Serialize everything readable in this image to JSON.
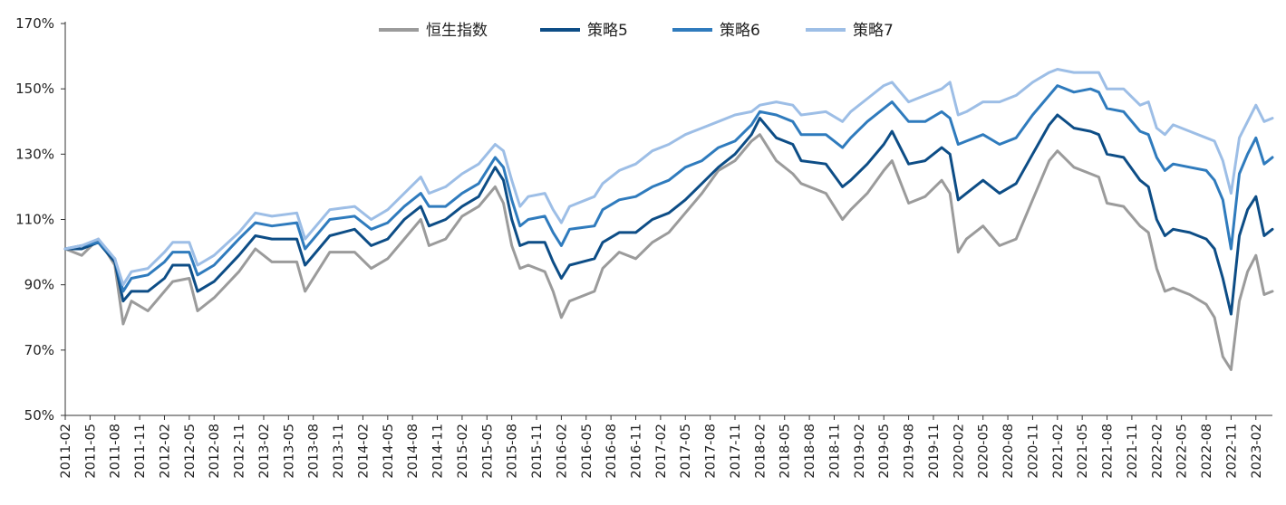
{
  "chart_data": {
    "type": "line",
    "title": "",
    "xlabel": "",
    "ylabel": "",
    "ylim": [
      50,
      170
    ],
    "y_ticks": [
      "50%",
      "70%",
      "90%",
      "110%",
      "130%",
      "150%",
      "170%"
    ],
    "y_tick_values": [
      50,
      70,
      90,
      110,
      130,
      150,
      170
    ],
    "x_tick_labels": [
      "2011-02",
      "2011-05",
      "2011-08",
      "2011-11",
      "2012-02",
      "2012-05",
      "2012-08",
      "2012-11",
      "2013-02",
      "2013-05",
      "2013-08",
      "2013-11",
      "2014-02",
      "2014-05",
      "2014-08",
      "2014-11",
      "2015-02",
      "2015-05",
      "2015-08",
      "2015-11",
      "2016-02",
      "2016-05",
      "2016-08",
      "2016-11",
      "2017-02",
      "2017-05",
      "2017-08",
      "2017-11",
      "2018-02",
      "2018-05",
      "2018-08",
      "2018-11",
      "2019-02",
      "2019-05",
      "2019-08",
      "2019-11",
      "2020-02",
      "2020-05",
      "2020-08",
      "2020-11",
      "2021-02",
      "2021-05",
      "2021-08",
      "2021-11",
      "2022-02",
      "2022-05",
      "2022-08",
      "2022-11",
      "2023-02"
    ],
    "x_range": [
      "2011-02",
      "2023-04"
    ],
    "legend_position": "top-center",
    "grid": false,
    "x": [
      "2011-02",
      "2011-04",
      "2011-06",
      "2011-08",
      "2011-09",
      "2011-10",
      "2011-12",
      "2012-02",
      "2012-03",
      "2012-05",
      "2012-06",
      "2012-08",
      "2012-11",
      "2013-01",
      "2013-03",
      "2013-06",
      "2013-07",
      "2013-10",
      "2014-01",
      "2014-03",
      "2014-05",
      "2014-07",
      "2014-09",
      "2014-10",
      "2014-12",
      "2015-02",
      "2015-04",
      "2015-06",
      "2015-07",
      "2015-08",
      "2015-09",
      "2015-10",
      "2015-12",
      "2016-01",
      "2016-02",
      "2016-03",
      "2016-06",
      "2016-07",
      "2016-09",
      "2016-11",
      "2017-01",
      "2017-03",
      "2017-05",
      "2017-07",
      "2017-09",
      "2017-11",
      "2018-01",
      "2018-02",
      "2018-04",
      "2018-06",
      "2018-07",
      "2018-10",
      "2018-12",
      "2019-01",
      "2019-03",
      "2019-05",
      "2019-06",
      "2019-08",
      "2019-10",
      "2019-12",
      "2020-01",
      "2020-02",
      "2020-03",
      "2020-05",
      "2020-07",
      "2020-09",
      "2020-11",
      "2021-01",
      "2021-02",
      "2021-04",
      "2021-06",
      "2021-07",
      "2021-08",
      "2021-10",
      "2021-12",
      "2022-01",
      "2022-02",
      "2022-03",
      "2022-04",
      "2022-06",
      "2022-08",
      "2022-09",
      "2022-10",
      "2022-11",
      "2022-12",
      "2023-01",
      "2023-02",
      "2023-03",
      "2023-04"
    ],
    "series": [
      {
        "name": "恒生指数",
        "color": "#9b9b9b",
        "values": [
          101,
          99,
          104,
          96,
          78,
          85,
          82,
          88,
          91,
          92,
          82,
          86,
          94,
          101,
          97,
          97,
          88,
          100,
          100,
          95,
          98,
          104,
          110,
          102,
          104,
          111,
          114,
          120,
          115,
          102,
          95,
          96,
          94,
          88,
          80,
          85,
          88,
          95,
          100,
          98,
          103,
          106,
          112,
          118,
          125,
          128,
          134,
          136,
          128,
          124,
          121,
          118,
          110,
          113,
          118,
          125,
          128,
          115,
          117,
          122,
          118,
          100,
          104,
          108,
          102,
          104,
          116,
          128,
          131,
          126,
          124,
          123,
          115,
          114,
          108,
          106,
          95,
          88,
          89,
          87,
          84,
          80,
          68,
          64,
          85,
          94,
          99,
          87,
          88
        ]
      },
      {
        "name": "策略5",
        "color": "#0d4d86",
        "values": [
          101,
          101,
          103,
          97,
          85,
          88,
          88,
          92,
          96,
          96,
          88,
          91,
          99,
          105,
          104,
          104,
          96,
          105,
          107,
          102,
          104,
          110,
          114,
          108,
          110,
          114,
          117,
          126,
          122,
          110,
          102,
          103,
          103,
          97,
          92,
          96,
          98,
          103,
          106,
          106,
          110,
          112,
          116,
          121,
          126,
          130,
          136,
          141,
          135,
          133,
          128,
          127,
          120,
          122,
          127,
          133,
          137,
          127,
          128,
          132,
          130,
          116,
          118,
          122,
          118,
          121,
          130,
          139,
          142,
          138,
          137,
          136,
          130,
          129,
          122,
          120,
          110,
          105,
          107,
          106,
          104,
          101,
          92,
          81,
          105,
          113,
          117,
          105,
          107
        ]
      },
      {
        "name": "策略6",
        "color": "#2f7bbd",
        "values": [
          101,
          102,
          103,
          98,
          88,
          92,
          93,
          97,
          100,
          100,
          93,
          96,
          104,
          109,
          108,
          109,
          101,
          110,
          111,
          107,
          109,
          114,
          118,
          114,
          114,
          118,
          121,
          129,
          126,
          116,
          108,
          110,
          111,
          106,
          102,
          107,
          108,
          113,
          116,
          117,
          120,
          122,
          126,
          128,
          132,
          134,
          139,
          143,
          142,
          140,
          136,
          136,
          132,
          135,
          140,
          144,
          146,
          140,
          140,
          143,
          141,
          133,
          134,
          136,
          133,
          135,
          142,
          148,
          151,
          149,
          150,
          149,
          144,
          143,
          137,
          136,
          129,
          125,
          127,
          126,
          125,
          122,
          116,
          101,
          124,
          130,
          135,
          127,
          129
        ]
      },
      {
        "name": "策略7",
        "color": "#9dbee6",
        "values": [
          101,
          102,
          104,
          98,
          90,
          94,
          95,
          100,
          103,
          103,
          96,
          99,
          106,
          112,
          111,
          112,
          104,
          113,
          114,
          110,
          113,
          118,
          123,
          118,
          120,
          124,
          127,
          133,
          131,
          122,
          114,
          117,
          118,
          113,
          109,
          114,
          117,
          121,
          125,
          127,
          131,
          133,
          136,
          138,
          140,
          142,
          143,
          145,
          146,
          145,
          142,
          143,
          140,
          143,
          147,
          151,
          152,
          146,
          148,
          150,
          152,
          142,
          143,
          146,
          146,
          148,
          152,
          155,
          156,
          155,
          155,
          155,
          150,
          150,
          145,
          146,
          138,
          136,
          139,
          137,
          135,
          134,
          128,
          118,
          135,
          140,
          145,
          140,
          141
        ]
      }
    ]
  }
}
